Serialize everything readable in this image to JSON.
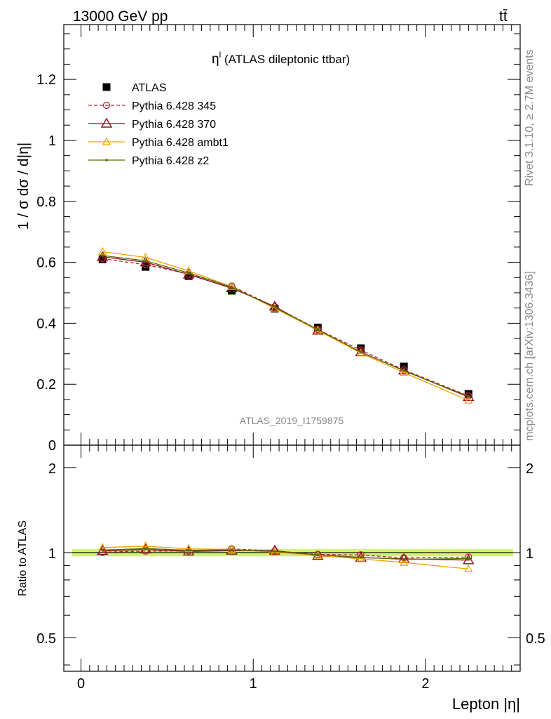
{
  "header": {
    "left": "13000 GeV pp",
    "right": "tt̄"
  },
  "side": {
    "rivet": "Rivet 3.1.10, ≥ 2.7M events",
    "mcplots": "mcplots.cern.ch [arXiv:1306.3436]"
  },
  "main_panel": {
    "title_symbol": "η",
    "title_sup": "l",
    "title_rest": " (ATLAS dileptonic ttbar)",
    "ylabel": "1 / σ  dσ / d|η|",
    "watermark": "ATLAS_2019_I1759875",
    "y_ticks": [
      "0",
      "0.2",
      "0.4",
      "0.6",
      "0.8",
      "1",
      "1.2"
    ]
  },
  "ratio_panel": {
    "ylabel": "Ratio to ATLAS",
    "y_ticks": [
      "0.5",
      "1",
      "2"
    ]
  },
  "xaxis": {
    "label": "Lepton |η|",
    "ticks": [
      "0",
      "1",
      "2"
    ]
  },
  "colors": {
    "atlas": "#000000",
    "p345": "#b0253a",
    "p370": "#8b1020",
    "ambt1": "#f0a000",
    "z2": "#556b00",
    "band": "#c8f060"
  },
  "chart_data": {
    "type": "line",
    "x": [
      0.125,
      0.375,
      0.625,
      0.875,
      1.125,
      1.375,
      1.625,
      1.875,
      2.25
    ],
    "xlim": [
      -0.1,
      2.55
    ],
    "ylim": [
      0,
      1.38
    ],
    "ratio_ylim": [
      0.38,
      2.4
    ],
    "ratio_scale": "log",
    "grid": false,
    "legend_position": "top-left",
    "series": [
      {
        "name": "ATLAS",
        "key": "atlas",
        "style": "square",
        "values": [
          0.61,
          0.585,
          0.555,
          0.507,
          0.448,
          0.386,
          0.318,
          0.258,
          0.168
        ]
      },
      {
        "name": "Pythia 6.428 345",
        "key": "p345",
        "style": "dash-circle",
        "values": [
          0.612,
          0.592,
          0.562,
          0.522,
          0.454,
          0.38,
          0.312,
          0.247,
          0.162
        ]
      },
      {
        "name": "Pythia 6.428 370",
        "key": "p370",
        "style": "solid-triangle",
        "values": [
          0.618,
          0.6,
          0.56,
          0.515,
          0.455,
          0.376,
          0.305,
          0.245,
          0.158
        ]
      },
      {
        "name": "Pythia 6.428 ambt1",
        "key": "ambt1",
        "style": "solid-otriangle",
        "values": [
          0.635,
          0.616,
          0.572,
          0.52,
          0.449,
          0.377,
          0.302,
          0.238,
          0.147
        ]
      },
      {
        "name": "Pythia 6.428 z2",
        "key": "z2",
        "style": "solid-dot",
        "values": [
          0.622,
          0.605,
          0.565,
          0.518,
          0.452,
          0.379,
          0.306,
          0.244,
          0.16
        ]
      }
    ],
    "ratio_series": [
      {
        "key": "p345",
        "values": [
          1.003,
          1.012,
          1.013,
          1.03,
          1.013,
          0.985,
          0.981,
          0.957,
          0.964
        ]
      },
      {
        "key": "p370",
        "values": [
          1.013,
          1.026,
          1.009,
          1.016,
          1.016,
          0.974,
          0.959,
          0.95,
          0.94
        ]
      },
      {
        "key": "ambt1",
        "values": [
          1.041,
          1.053,
          1.031,
          1.026,
          1.002,
          0.977,
          0.95,
          0.922,
          0.875
        ]
      },
      {
        "key": "z2",
        "values": [
          1.02,
          1.034,
          1.018,
          1.022,
          1.009,
          0.982,
          0.962,
          0.946,
          0.952
        ]
      }
    ]
  }
}
